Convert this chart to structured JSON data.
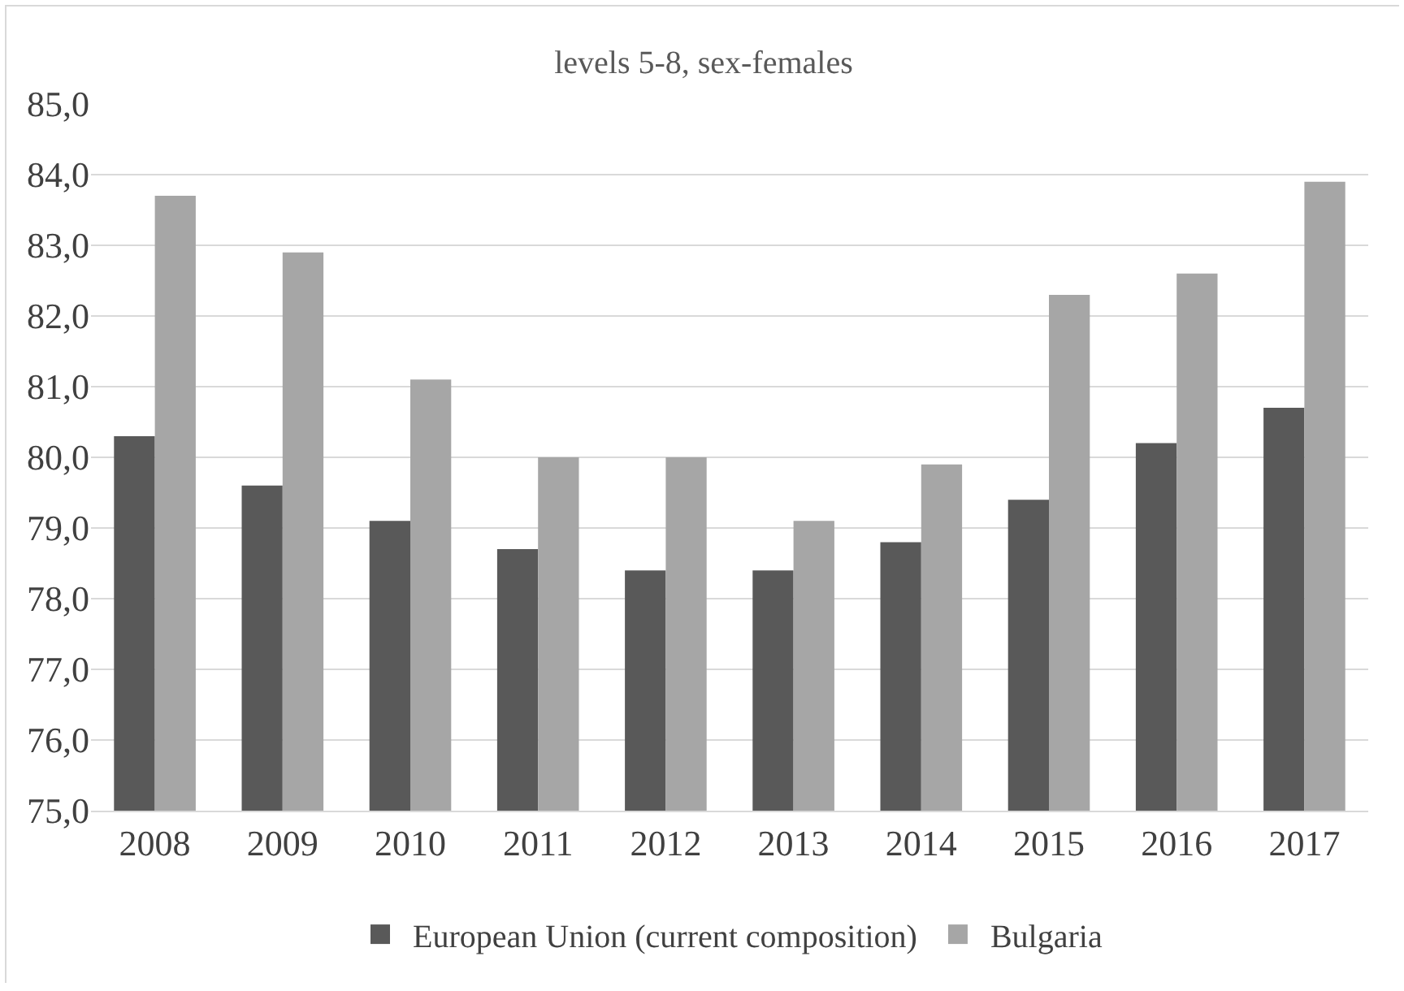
{
  "chart_data": {
    "type": "bar",
    "title": "levels 5-8, sex-females",
    "categories": [
      "2008",
      "2009",
      "2010",
      "2011",
      "2012",
      "2013",
      "2014",
      "2015",
      "2016",
      "2017"
    ],
    "series": [
      {
        "name": "European Union (current composition)",
        "color": "#595959",
        "values": [
          80.3,
          79.6,
          79.1,
          78.7,
          78.4,
          78.4,
          78.8,
          79.4,
          80.2,
          80.7
        ]
      },
      {
        "name": "Bulgaria",
        "color": "#a6a6a6",
        "values": [
          83.7,
          82.9,
          81.1,
          80.0,
          80.0,
          79.1,
          79.9,
          82.3,
          82.6,
          83.9
        ]
      }
    ],
    "ylim": [
      75,
      85
    ],
    "yticks": [
      {
        "value": 75,
        "label": "75,0"
      },
      {
        "value": 76,
        "label": "76,0"
      },
      {
        "value": 77,
        "label": "77,0"
      },
      {
        "value": 78,
        "label": "78,0"
      },
      {
        "value": 79,
        "label": "79,0"
      },
      {
        "value": 80,
        "label": "80,0"
      },
      {
        "value": 81,
        "label": "81,0"
      },
      {
        "value": 82,
        "label": "82,0"
      },
      {
        "value": 83,
        "label": "83,0"
      },
      {
        "value": 84,
        "label": "84,0"
      },
      {
        "value": 85,
        "label": "85,0"
      }
    ],
    "grid": "y",
    "legend": "bottom"
  }
}
